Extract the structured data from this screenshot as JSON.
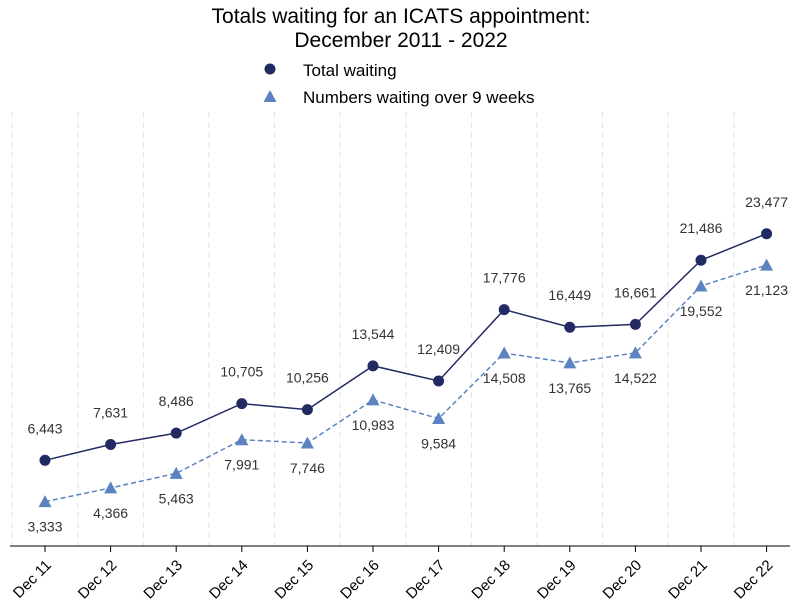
{
  "chart_data": {
    "type": "line",
    "title_lines": [
      "Totals waiting for an ICATS appointment:",
      "December 2011 - 2022"
    ],
    "categories": [
      "Dec 11",
      "Dec 12",
      "Dec 13",
      "Dec 14",
      "Dec 15",
      "Dec 16",
      "Dec 17",
      "Dec 18",
      "Dec 19",
      "Dec 20",
      "Dec 21",
      "Dec 22"
    ],
    "series": [
      {
        "name": "Total waiting",
        "marker": "circle",
        "line_style": "solid",
        "color": "#222a63",
        "values": [
          6443,
          7631,
          8486,
          10705,
          10256,
          13544,
          12409,
          17776,
          16449,
          16661,
          21486,
          23477
        ],
        "labels": [
          "6,443",
          "7,631",
          "8,486",
          "10,705",
          "10,256",
          "13,544",
          "12,409",
          "17,776",
          "16,449",
          "16,661",
          "21,486",
          "23,477"
        ],
        "label_position": "above"
      },
      {
        "name": "Numbers waiting over 9 weeks",
        "marker": "triangle",
        "line_style": "dashed",
        "color": "#5b83c0",
        "values": [
          3333,
          4366,
          5463,
          7991,
          7746,
          10983,
          9584,
          14508,
          13765,
          14522,
          19552,
          21123
        ],
        "labels": [
          "3,333",
          "4,366",
          "5,463",
          "7,991",
          "7,746",
          "10,983",
          "9,584",
          "14,508",
          "13,765",
          "14,522",
          "19,552",
          "21,123"
        ],
        "label_position": "below"
      }
    ],
    "xlabel": "",
    "ylabel": "",
    "ylim": [
      0,
      25000
    ],
    "y_axis_visible": false,
    "grid": "vertical dashed",
    "legend_position": "top-center"
  }
}
